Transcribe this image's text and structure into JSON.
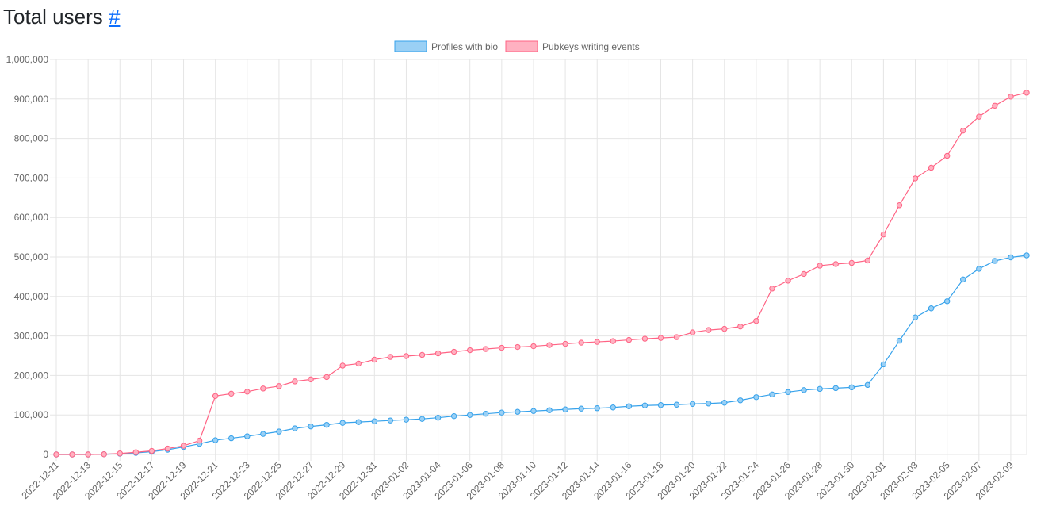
{
  "page": {
    "heading": "Total users",
    "anchor": "#"
  },
  "chart_data": {
    "type": "line",
    "title": "",
    "xlabel": "",
    "ylabel": "",
    "ylim": [
      0,
      1000000
    ],
    "y_ticks": [
      "0",
      "100,000",
      "200,000",
      "300,000",
      "400,000",
      "500,000",
      "600,000",
      "700,000",
      "800,000",
      "900,000",
      "1,000,000"
    ],
    "grid": true,
    "legend_position": "top",
    "x": [
      "2022-12-11",
      "2022-12-12",
      "2022-12-13",
      "2022-12-14",
      "2022-12-15",
      "2022-12-16",
      "2022-12-17",
      "2022-12-18",
      "2022-12-19",
      "2022-12-20",
      "2022-12-21",
      "2022-12-22",
      "2022-12-23",
      "2022-12-24",
      "2022-12-25",
      "2022-12-26",
      "2022-12-27",
      "2022-12-28",
      "2022-12-29",
      "2022-12-30",
      "2022-12-31",
      "2023-01-01",
      "2023-01-02",
      "2023-01-03",
      "2023-01-04",
      "2023-01-05",
      "2023-01-06",
      "2023-01-07",
      "2023-01-08",
      "2023-01-09",
      "2023-01-10",
      "2023-01-11",
      "2023-01-12",
      "2023-01-13",
      "2023-01-14",
      "2023-01-15",
      "2023-01-16",
      "2023-01-17",
      "2023-01-18",
      "2023-01-19",
      "2023-01-20",
      "2023-01-21",
      "2023-01-22",
      "2023-01-23",
      "2023-01-24",
      "2023-01-25",
      "2023-01-26",
      "2023-01-27",
      "2023-01-28",
      "2023-01-29",
      "2023-01-30",
      "2023-01-31",
      "2023-02-01",
      "2023-02-02",
      "2023-02-03",
      "2023-02-04",
      "2023-02-05",
      "2023-02-06",
      "2023-02-07",
      "2023-02-08",
      "2023-02-09",
      "2023-02-10"
    ],
    "x_tick_labels": [
      "2022-12-11",
      "2022-12-13",
      "2022-12-15",
      "2022-12-17",
      "2022-12-19",
      "2022-12-21",
      "2022-12-23",
      "2022-12-25",
      "2022-12-27",
      "2022-12-29",
      "2022-12-31",
      "2023-01-02",
      "2023-01-04",
      "2023-01-06",
      "2023-01-08",
      "2023-01-10",
      "2023-01-12",
      "2023-01-14",
      "2023-01-16",
      "2023-01-18",
      "2023-01-20",
      "2023-01-22",
      "2023-01-24",
      "2023-01-26",
      "2023-01-28",
      "2023-01-30",
      "2023-02-01",
      "2023-02-03",
      "2023-02-05",
      "2023-02-07",
      "2023-02-09"
    ],
    "series": [
      {
        "name": "Profiles with bio",
        "color": "#36a2eb",
        "fill": "#9ad0f5",
        "values": [
          0,
          0,
          0,
          500,
          2000,
          4000,
          7000,
          12000,
          19000,
          27000,
          36000,
          41000,
          46000,
          52000,
          58000,
          66000,
          71000,
          75000,
          80000,
          82000,
          84000,
          86000,
          88000,
          90000,
          93000,
          97000,
          100000,
          103000,
          106000,
          108000,
          110000,
          112000,
          114000,
          116000,
          117000,
          119000,
          122000,
          124000,
          125000,
          126000,
          128000,
          129000,
          131000,
          137000,
          145000,
          152000,
          158000,
          163000,
          166000,
          168000,
          170000,
          176000,
          228000,
          288000,
          347000,
          370000,
          388000,
          443000,
          470000,
          490000,
          499000,
          504000
        ]
      },
      {
        "name": "Pubkeys writing events",
        "color": "#ff6384",
        "fill": "#ffb1c1",
        "values": [
          0,
          0,
          0,
          500,
          2500,
          5500,
          9000,
          15000,
          22000,
          35000,
          148000,
          154000,
          159000,
          167000,
          173000,
          185000,
          190000,
          196000,
          225000,
          230000,
          240000,
          247000,
          249000,
          252000,
          256000,
          260000,
          264000,
          267000,
          270000,
          272000,
          274000,
          277000,
          280000,
          283000,
          285000,
          287000,
          290000,
          293000,
          295000,
          297000,
          309000,
          315000,
          318000,
          324000,
          338000,
          420000,
          440000,
          457000,
          478000,
          482000,
          485000,
          491000,
          557000,
          631000,
          699000,
          726000,
          756000,
          820000,
          855000,
          883000,
          906000,
          916000
        ]
      }
    ]
  }
}
